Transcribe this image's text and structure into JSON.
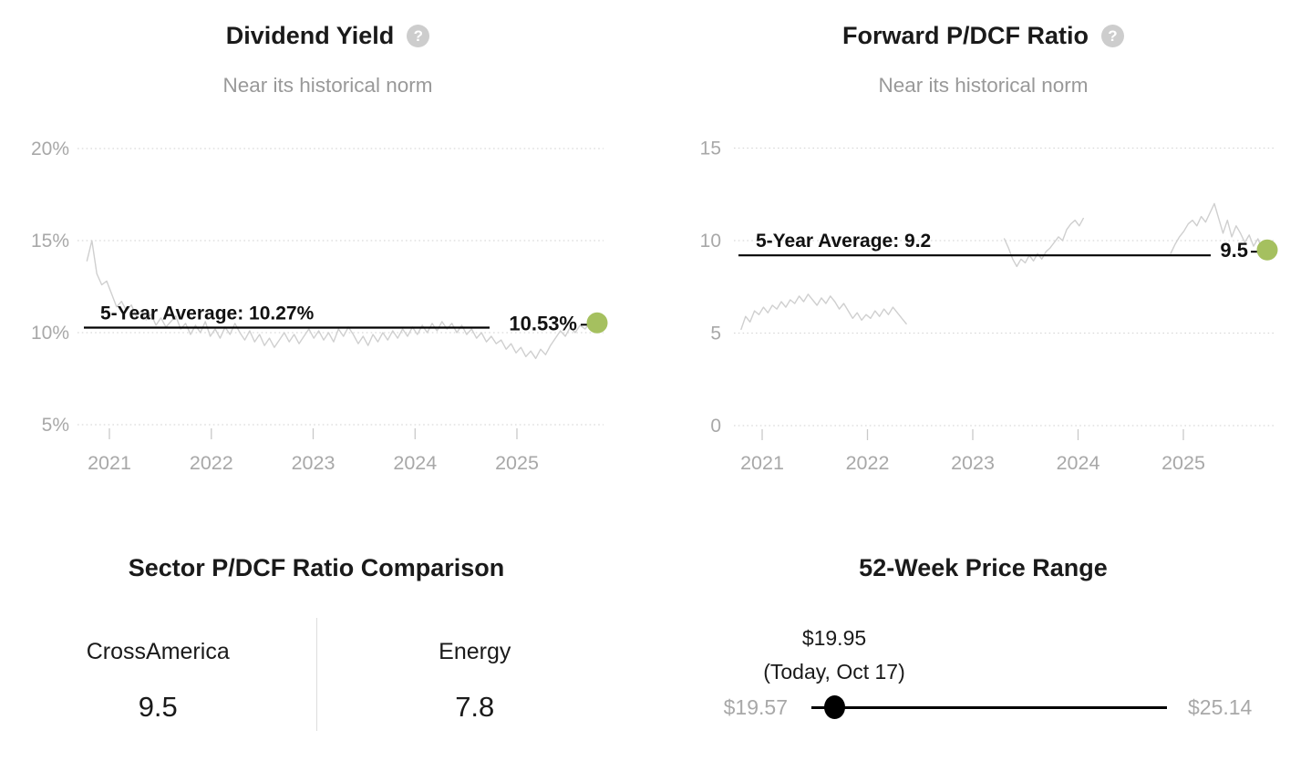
{
  "colors": {
    "title_text": "#1a1a1a",
    "subtitle_text": "#999999",
    "axis_text": "#a8a8a8",
    "grid": "#d9d9d9",
    "tick": "#c9c9c9",
    "series_line": "#cfcfcf",
    "average_line": "#000000",
    "current_dot": "#a5c05f",
    "help_icon_bg": "#cdcdcd",
    "help_icon_glyph": "#ffffff",
    "slider": "#000000",
    "divider": "#dddddd"
  },
  "help_icon": {
    "glyph": "?"
  },
  "chart_data": [
    {
      "type": "line",
      "id": "dividend-yield",
      "title": "Dividend Yield",
      "subtitle": "Near its historical norm",
      "ylim": [
        2.8,
        21.2
      ],
      "grid": "dotted-horizontal",
      "legend_position": "none",
      "yticks": {
        "values": [
          20,
          15,
          10,
          5
        ],
        "labels": [
          "20%",
          "15%",
          "10%",
          "5%"
        ]
      },
      "xticks": {
        "values": [
          2021,
          2022,
          2023,
          2024,
          2025
        ],
        "labels": [
          "2021",
          "2022",
          "2023",
          "2024",
          "2025"
        ]
      },
      "average": {
        "value": 10.27,
        "label": "5-Year Average: 10.27%"
      },
      "current": {
        "value": 10.53,
        "label": "10.53%"
      },
      "series": [
        {
          "name": "Dividend Yield",
          "segments": [
            {
              "x_start": 2020.78,
              "x_step": 0.0484,
              "values": [
                13.9,
                15.0,
                13.2,
                12.6,
                12.8,
                12.1,
                11.4,
                11.7,
                11.2,
                11.5,
                10.9,
                11.2,
                10.7,
                11.0,
                10.4,
                10.8,
                10.3,
                10.6,
                10.9,
                10.2,
                10.5,
                9.9,
                10.4,
                10.0,
                10.6,
                9.8,
                10.2,
                9.7,
                10.3,
                9.9,
                10.5,
                10.0,
                9.6,
                10.1,
                9.5,
                9.9,
                9.3,
                9.7,
                9.2,
                9.6,
                10.0,
                9.5,
                9.9,
                9.4,
                9.8,
                10.2,
                9.7,
                10.1,
                9.6,
                10.0,
                9.5,
                10.2,
                9.8,
                10.3,
                9.9,
                9.4,
                9.8,
                9.3,
                9.9,
                9.5,
                10.0,
                9.6,
                10.1,
                9.7,
                10.2,
                9.8,
                10.3,
                9.9,
                10.4,
                10.0,
                10.5,
                10.1,
                10.6,
                10.2,
                10.5,
                10.0,
                10.4,
                9.9,
                10.2,
                9.7,
                10.0,
                9.5,
                9.8,
                9.4,
                9.6,
                9.1,
                9.4,
                8.9,
                9.2,
                8.7,
                9.0,
                8.6,
                9.1,
                8.8,
                9.3,
                9.7,
                10.1,
                9.8,
                10.3,
                10.0,
                10.4,
                10.2,
                10.53
              ]
            }
          ]
        }
      ]
    },
    {
      "type": "line",
      "id": "forward-pdcf-ratio",
      "title": "Forward P/DCF Ratio",
      "subtitle": "Near its historical norm",
      "ylim": [
        0,
        16
      ],
      "grid": "dotted-horizontal",
      "legend_position": "none",
      "yticks": {
        "values": [
          15,
          10,
          5,
          0
        ],
        "labels": [
          "15",
          "10",
          "5",
          "0"
        ]
      },
      "xticks": {
        "values": [
          2021,
          2022,
          2023,
          2024,
          2025
        ],
        "labels": [
          "2021",
          "2022",
          "2023",
          "2024",
          "2025"
        ]
      },
      "average": {
        "value": 9.2,
        "label": "5-Year Average: 9.2"
      },
      "current": {
        "value": 9.5,
        "label": "9.5"
      },
      "series": [
        {
          "name": "Forward P/DCF Ratio",
          "segments": [
            {
              "x_start": 2020.8,
              "x_step": 0.0424,
              "values": [
                5.2,
                5.9,
                5.6,
                6.2,
                6.0,
                6.4,
                6.1,
                6.5,
                6.3,
                6.7,
                6.4,
                6.8,
                6.6,
                7.0,
                6.7,
                7.1,
                6.8,
                6.5,
                6.9,
                6.6,
                7.0,
                6.7,
                6.3,
                6.6,
                6.2,
                5.8,
                6.1,
                5.7,
                6.0,
                5.8,
                6.2,
                5.9,
                6.3,
                6.0,
                6.4,
                6.1,
                5.8,
                5.5
              ]
            },
            {
              "x_start": 2023.3,
              "x_step": 0.0395,
              "values": [
                10.1,
                9.6,
                9.0,
                8.6,
                9.0,
                8.8,
                9.2,
                8.9,
                9.3,
                9.0,
                9.4,
                9.6,
                9.9,
                10.2,
                10.0,
                10.6,
                10.9,
                11.1,
                10.8,
                11.2
              ]
            },
            {
              "x_start": 2024.88,
              "x_step": 0.0414,
              "values": [
                9.3,
                9.8,
                10.2,
                10.5,
                10.9,
                11.1,
                10.8,
                11.3,
                11.0,
                11.5,
                12.0,
                11.2,
                10.4,
                11.1,
                10.2,
                10.8,
                10.4,
                9.9,
                10.3,
                9.7,
                10.1,
                9.5
              ]
            }
          ]
        }
      ]
    },
    {
      "type": "table",
      "id": "sector-pdcf-comparison",
      "title": "Sector P/DCF Ratio Comparison",
      "columns": [
        {
          "label": "CrossAmerica",
          "value": "9.5"
        },
        {
          "label": "Energy",
          "value": "7.8"
        }
      ]
    },
    {
      "type": "range",
      "id": "52-week-price-range",
      "title": "52-Week Price Range",
      "low": 19.57,
      "high": 25.14,
      "current": 19.95,
      "low_label": "$19.57",
      "high_label": "$25.14",
      "current_label": "$19.95",
      "current_sublabel": "(Today, Oct 17)"
    }
  ]
}
